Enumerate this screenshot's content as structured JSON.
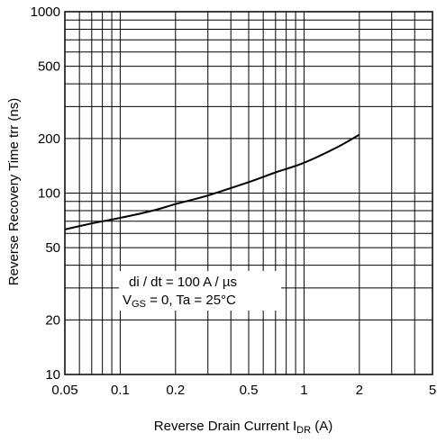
{
  "chart_data": {
    "type": "line",
    "title": "",
    "xlabel": {
      "main": "Reverse Drain Current I",
      "sub": "DR",
      "unit": " (A)"
    },
    "ylabel": "Reverse Recovery Time trr (ns)",
    "x_scale": "log",
    "y_scale": "log",
    "xlim": [
      0.05,
      5
    ],
    "ylim": [
      10,
      1000
    ],
    "grid": true,
    "x_ticks": [
      "0.05",
      "0.1",
      "0.2",
      "0.5",
      "1",
      "2",
      "5"
    ],
    "y_ticks": [
      "10",
      "20",
      "50",
      "100",
      "200",
      "500",
      "1000"
    ],
    "annotation": {
      "line1": "di / dt = 100 A / µs",
      "line2_main": "V",
      "line2_sub": "GS",
      "line2_rest": " = 0, Ta = 25°C"
    },
    "series": [
      {
        "x": [
          0.05,
          0.07,
          0.1,
          0.15,
          0.2,
          0.3,
          0.5,
          0.7,
          1.0,
          1.5,
          2.0
        ],
        "y": [
          63,
          68,
          73,
          80,
          87,
          97,
          115,
          130,
          147,
          178,
          210
        ]
      }
    ]
  }
}
